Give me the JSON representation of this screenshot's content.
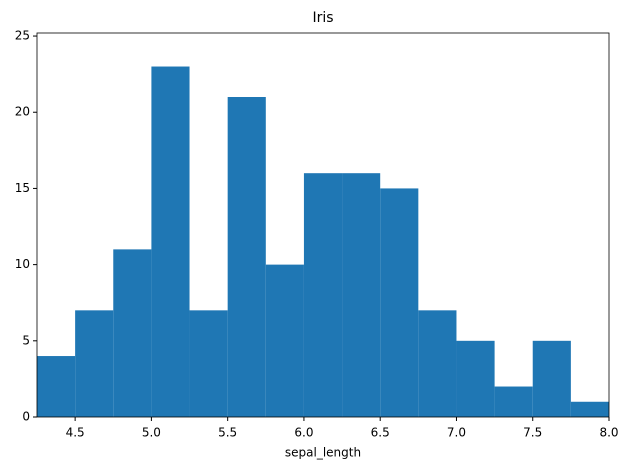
{
  "chart_data": {
    "type": "histogram",
    "title": "Iris",
    "xlabel": "sepal_length",
    "color": "#1f77b4",
    "bins": [
      4.25,
      4.5,
      4.75,
      5.0,
      5.25,
      5.5,
      5.75,
      6.0,
      6.25,
      6.5,
      6.75,
      7.0,
      7.25,
      7.5,
      7.75,
      8.0
    ],
    "values": [
      4,
      7,
      11,
      23,
      7,
      21,
      10,
      16,
      16,
      15,
      7,
      5,
      2,
      5,
      1
    ],
    "xlim": [
      4.25,
      8.0
    ],
    "xticks": [
      {
        "value": 4.5,
        "label": "4.5"
      },
      {
        "value": 5,
        "label": "5.0"
      },
      {
        "value": 5.5,
        "label": "5.5"
      },
      {
        "value": 6,
        "label": "6.0"
      },
      {
        "value": 6.5,
        "label": "6.5"
      },
      {
        "value": 7,
        "label": "7.0"
      },
      {
        "value": 7.5,
        "label": "7.5"
      },
      {
        "value": 8,
        "label": "8.0"
      }
    ],
    "ylim": [
      0,
      25.2
    ],
    "yticks": [
      0,
      5,
      10,
      15,
      20,
      25
    ]
  }
}
